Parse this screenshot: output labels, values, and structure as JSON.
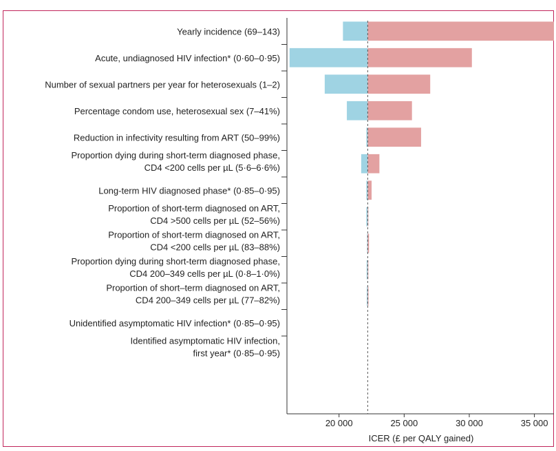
{
  "chart_data": {
    "type": "bar",
    "xlabel": "ICER (£ per QALY gained)",
    "ylabel": "",
    "baseline": 22200,
    "xlim": [
      16000,
      36500
    ],
    "ticks": [
      20000,
      25000,
      30000,
      35000
    ],
    "tick_labels": [
      "20 000",
      "25 000",
      "30 000",
      "35 000"
    ],
    "colors": {
      "low": "#9fd3e3",
      "high": "#e3a1a1",
      "baseline": "#555555"
    },
    "categories": [
      {
        "lines": [
          "Yearly incidence (69–143)"
        ],
        "low": 20300,
        "high": 36500
      },
      {
        "lines": [
          "Acute, undiagnosed HIV infection* (0·60–0·95)"
        ],
        "low": 16200,
        "high": 30200
      },
      {
        "lines": [
          "Number of sexual partners per year for heterosexuals (1–2)"
        ],
        "low": 18900,
        "high": 27000
      },
      {
        "lines": [
          "Percentage condom use, heterosexual sex (7–41%)"
        ],
        "low": 20600,
        "high": 25600
      },
      {
        "lines": [
          "Reduction in infectivity resulting from ART (50–99%)"
        ],
        "low": 22100,
        "high": 26300
      },
      {
        "lines": [
          "Proportion dying during short-term diagnosed phase,",
          "CD4 <200 cells per µL (5·6–6·6%)"
        ],
        "low": 21700,
        "high": 23100
      },
      {
        "lines": [
          "Long-term HIV diagnosed phase* (0·85–0·95)"
        ],
        "low": 22100,
        "high": 22500
      },
      {
        "lines": [
          "Proportion of short-term diagnosed on ART,",
          "CD4 >500 cells per µL (52–56%)"
        ],
        "low": 22100,
        "high": 22250
      },
      {
        "lines": [
          "Proportion of short-term diagnosed on ART,",
          "CD4 <200 cells per µL (83–88%)"
        ],
        "low": 22150,
        "high": 22300
      },
      {
        "lines": [
          "Proportion dying during short-term diagnosed phase,",
          "CD4 200–349 cells per µL (0·8–1·0%)"
        ],
        "low": 22120,
        "high": 22250
      },
      {
        "lines": [
          "Proportion of short–term diagnosed on ART,",
          "CD4 200–349 cells per µL (77–82%)"
        ],
        "low": 22130,
        "high": 22260
      },
      {
        "lines": [
          "Unidentified asymptomatic HIV infection* (0·85–0·95)"
        ],
        "low": 22200,
        "high": 22200
      },
      {
        "lines": [
          "Identified asymptomatic HIV infection,",
          "first year* (0·85–0·95)"
        ],
        "low": 22200,
        "high": 22200
      }
    ]
  }
}
